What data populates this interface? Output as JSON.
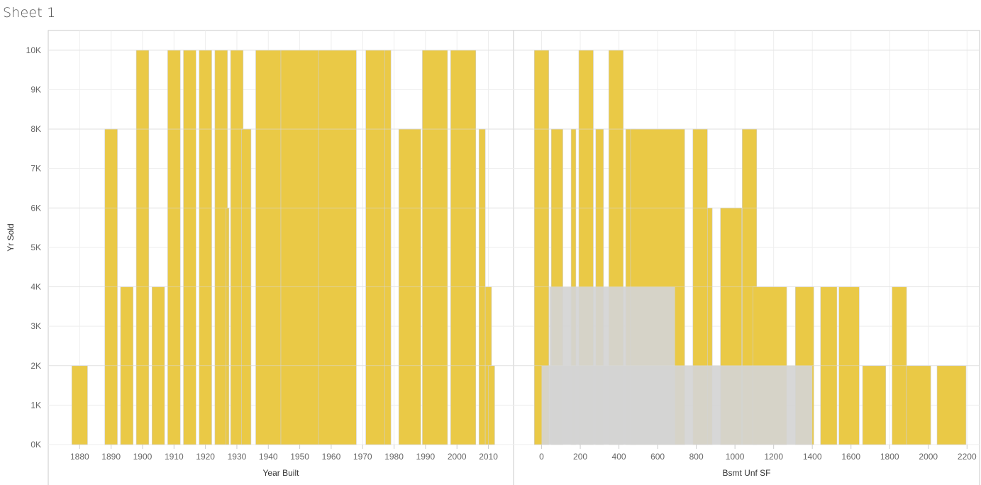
{
  "sheet": {
    "title": "Sheet 1"
  },
  "colors": {
    "bar": "#EAC946",
    "bar_stroke": "#cfcfcf",
    "gray_fill": "#D4D4D4",
    "grid": "#eeeeee",
    "frame": "#c8c8c8"
  },
  "chart_data": [
    {
      "type": "bar",
      "title": "",
      "xlabel": "Year Built",
      "ylabel": "Yr Sold",
      "ylim": [
        0,
        10500
      ],
      "xlim": [
        1870,
        2018
      ],
      "x_ticks": [
        "1880",
        "1890",
        "1900",
        "1910",
        "1920",
        "1930",
        "1940",
        "1950",
        "1960",
        "1970",
        "1980",
        "1990",
        "2000",
        "2010"
      ],
      "y_ticks": [
        "0K",
        "1K",
        "2K",
        "3K",
        "4K",
        "5K",
        "6K",
        "7K",
        "8K",
        "9K",
        "10K"
      ],
      "series": [
        {
          "values": [
            {
              "x": 1880,
              "y": 2000,
              "w": 5
            },
            {
              "x": 1890,
              "y": 8000,
              "w": 4
            },
            {
              "x": 1895,
              "y": 4000,
              "w": 4
            },
            {
              "x": 1900,
              "y": 10000,
              "w": 4
            },
            {
              "x": 1905,
              "y": 4000,
              "w": 4
            },
            {
              "x": 1910,
              "y": 10000,
              "w": 4
            },
            {
              "x": 1915,
              "y": 10000,
              "w": 4
            },
            {
              "x": 1920,
              "y": 10000,
              "w": 4
            },
            {
              "x": 1925,
              "y": 10000,
              "w": 4
            },
            {
              "x": 1927,
              "y": 6000,
              "w": 1
            },
            {
              "x": 1930,
              "y": 10000,
              "w": 4
            },
            {
              "x": 1933,
              "y": 8000,
              "w": 3
            },
            {
              "x": 1940,
              "y": 10000,
              "w": 8
            },
            {
              "x": 1950,
              "y": 10000,
              "w": 12
            },
            {
              "x": 1962,
              "y": 10000,
              "w": 12
            },
            {
              "x": 1974,
              "y": 10000,
              "w": 6
            },
            {
              "x": 1978,
              "y": 10000,
              "w": 2
            },
            {
              "x": 1985,
              "y": 8000,
              "w": 7
            },
            {
              "x": 1993,
              "y": 10000,
              "w": 8
            },
            {
              "x": 2002,
              "y": 10000,
              "w": 8
            },
            {
              "x": 2008,
              "y": 8000,
              "w": 2
            },
            {
              "x": 2010,
              "y": 4000,
              "w": 2
            },
            {
              "x": 2011,
              "y": 2000,
              "w": 2
            }
          ]
        }
      ]
    },
    {
      "type": "bar",
      "title": "",
      "xlabel": "Bsmt Unf SF",
      "ylabel": "Yr Sold",
      "ylim": [
        0,
        10500
      ],
      "xlim": [
        -145,
        2265
      ],
      "x_ticks": [
        "0",
        "200",
        "400",
        "600",
        "800",
        "1000",
        "1200",
        "1400",
        "1600",
        "1800",
        "2000",
        "2200"
      ],
      "y_ticks": [
        "0K",
        "1K",
        "2K",
        "3K",
        "4K",
        "5K",
        "6K",
        "7K",
        "8K",
        "9K",
        "10K"
      ],
      "series": [
        {
          "values": [
            {
              "x": 0,
              "y": 10000,
              "w": 75
            },
            {
              "x": 80,
              "y": 8000,
              "w": 60
            },
            {
              "x": 165,
              "y": 8000,
              "w": 25
            },
            {
              "x": 230,
              "y": 10000,
              "w": 75
            },
            {
              "x": 300,
              "y": 8000,
              "w": 40
            },
            {
              "x": 385,
              "y": 10000,
              "w": 75
            },
            {
              "x": 460,
              "y": 8000,
              "w": 50
            },
            {
              "x": 600,
              "y": 8000,
              "w": 280
            },
            {
              "x": 820,
              "y": 8000,
              "w": 75
            },
            {
              "x": 870,
              "y": 6000,
              "w": 25
            },
            {
              "x": 980,
              "y": 6000,
              "w": 110
            },
            {
              "x": 1075,
              "y": 8000,
              "w": 75
            },
            {
              "x": 1180,
              "y": 4000,
              "w": 175
            },
            {
              "x": 1360,
              "y": 4000,
              "w": 95
            },
            {
              "x": 1485,
              "y": 4000,
              "w": 85
            },
            {
              "x": 1590,
              "y": 4000,
              "w": 105
            },
            {
              "x": 1720,
              "y": 2000,
              "w": 120
            },
            {
              "x": 1850,
              "y": 4000,
              "w": 75
            },
            {
              "x": 1950,
              "y": 2000,
              "w": 125
            },
            {
              "x": 2120,
              "y": 2000,
              "w": 150
            }
          ]
        }
      ],
      "gray_overlays": [
        {
          "x": 365,
          "y": 4000,
          "w": 650
        },
        {
          "x": 700,
          "y": 2000,
          "w": 1400
        }
      ]
    }
  ]
}
